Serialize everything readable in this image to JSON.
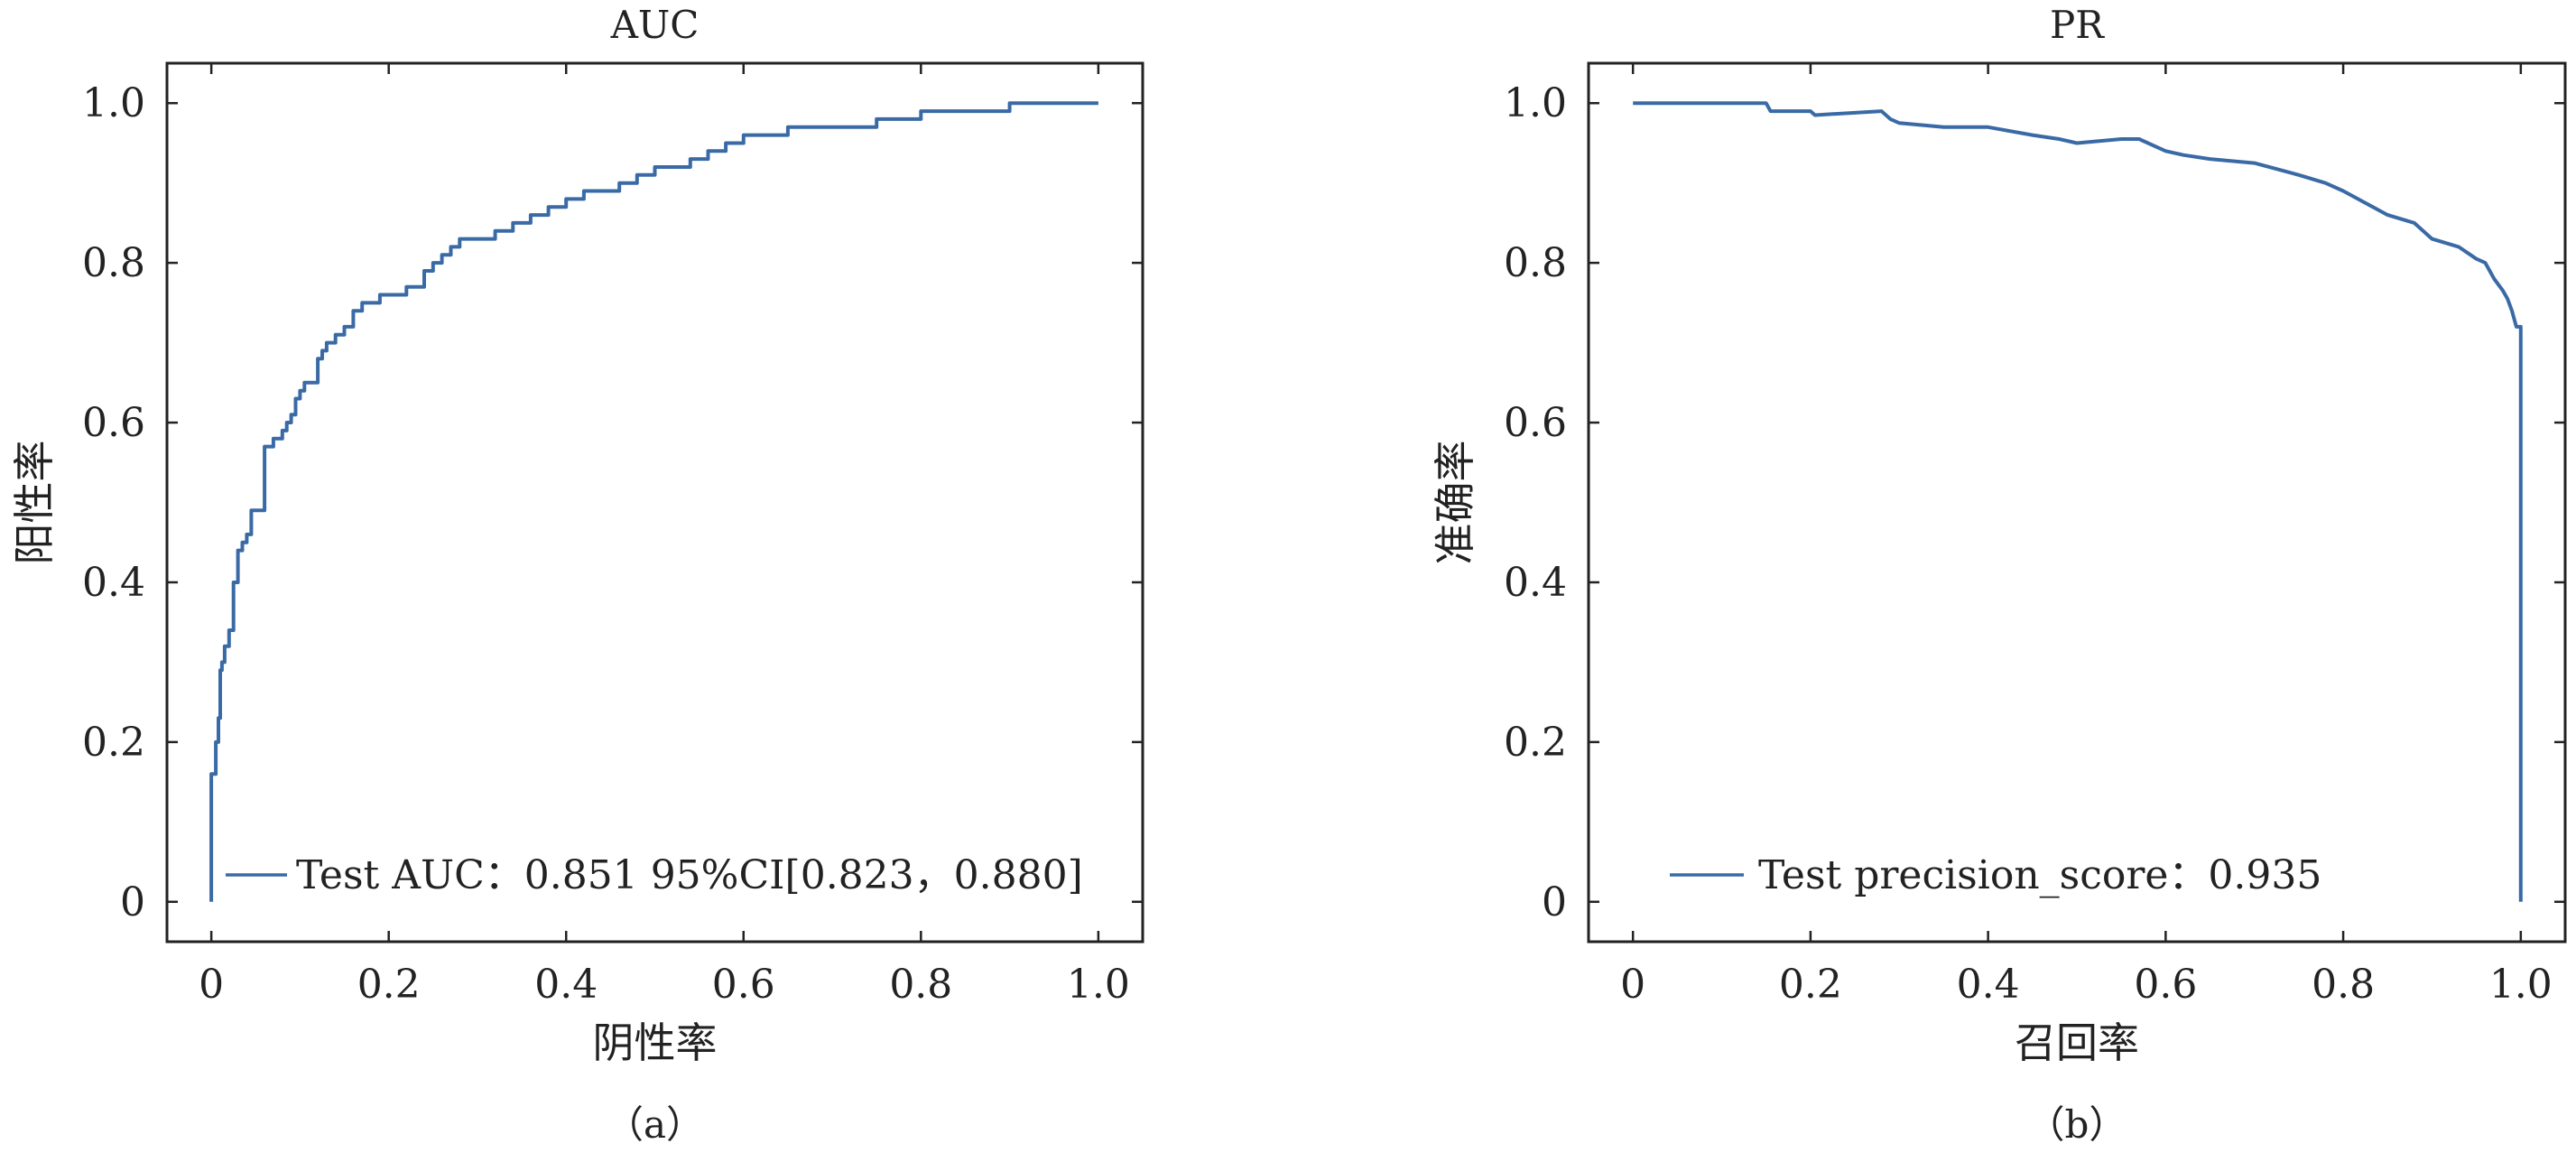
{
  "colors": {
    "curve": "#3a6aa5",
    "axis": "#222222",
    "background": "#ffffff"
  },
  "chart_data": [
    {
      "type": "line",
      "title": "AUC",
      "xlabel": "阴性率",
      "ylabel": "阳性率",
      "caption": "（a）",
      "xlim": [
        -0.05,
        1.05
      ],
      "ylim": [
        -0.05,
        1.05
      ],
      "xticks": [
        0,
        0.2,
        0.4,
        0.6,
        0.8,
        1.0
      ],
      "xtick_labels": [
        "0",
        "0.2",
        "0.4",
        "0.6",
        "0.8",
        "1.0"
      ],
      "yticks": [
        0,
        0.2,
        0.4,
        0.6,
        0.8,
        1.0
      ],
      "ytick_labels": [
        "0",
        "0.2",
        "0.4",
        "0.6",
        "0.8",
        "1.0"
      ],
      "grid": false,
      "legend_position": "bottom-right",
      "series": [
        {
          "name": "Test AUC：0.851 95%CI[0.823，0.880]",
          "step": true,
          "x": [
            0,
            0,
            0.005,
            0.008,
            0.01,
            0.012,
            0.015,
            0.02,
            0.025,
            0.03,
            0.035,
            0.04,
            0.045,
            0.05,
            0.055,
            0.06,
            0.07,
            0.08,
            0.085,
            0.09,
            0.095,
            0.1,
            0.105,
            0.11,
            0.12,
            0.125,
            0.13,
            0.135,
            0.14,
            0.15,
            0.16,
            0.17,
            0.18,
            0.19,
            0.2,
            0.22,
            0.24,
            0.25,
            0.26,
            0.27,
            0.28,
            0.3,
            0.32,
            0.34,
            0.36,
            0.38,
            0.4,
            0.42,
            0.44,
            0.46,
            0.48,
            0.5,
            0.52,
            0.54,
            0.56,
            0.58,
            0.6,
            0.62,
            0.65,
            0.7,
            0.75,
            0.8,
            0.85,
            0.9,
            0.95,
            1.0
          ],
          "y": [
            0,
            0.16,
            0.2,
            0.23,
            0.29,
            0.3,
            0.32,
            0.34,
            0.4,
            0.44,
            0.45,
            0.46,
            0.49,
            0.49,
            0.49,
            0.57,
            0.58,
            0.59,
            0.6,
            0.61,
            0.63,
            0.64,
            0.65,
            0.65,
            0.68,
            0.69,
            0.7,
            0.7,
            0.71,
            0.72,
            0.74,
            0.75,
            0.75,
            0.76,
            0.76,
            0.77,
            0.79,
            0.8,
            0.81,
            0.82,
            0.83,
            0.83,
            0.84,
            0.85,
            0.86,
            0.87,
            0.88,
            0.89,
            0.89,
            0.9,
            0.91,
            0.92,
            0.92,
            0.93,
            0.94,
            0.95,
            0.96,
            0.96,
            0.97,
            0.97,
            0.98,
            0.99,
            0.99,
            1.0,
            1.0,
            1.0
          ]
        }
      ]
    },
    {
      "type": "line",
      "title": "PR",
      "xlabel": "召回率",
      "ylabel": "准确率",
      "caption": "（b）",
      "xlim": [
        -0.05,
        1.05
      ],
      "ylim": [
        -0.05,
        1.05
      ],
      "xticks": [
        0,
        0.2,
        0.4,
        0.6,
        0.8,
        1.0
      ],
      "xtick_labels": [
        "0",
        "0.2",
        "0.4",
        "0.6",
        "0.8",
        "1.0"
      ],
      "yticks": [
        0,
        0.2,
        0.4,
        0.6,
        0.8,
        1.0
      ],
      "ytick_labels": [
        "0",
        "0.2",
        "0.4",
        "0.6",
        "0.8",
        "1.0"
      ],
      "grid": false,
      "legend_position": "bottom-right",
      "series": [
        {
          "name": "Test precision_score：0.935",
          "step": false,
          "x": [
            0,
            0.15,
            0.155,
            0.2,
            0.205,
            0.28,
            0.29,
            0.3,
            0.35,
            0.4,
            0.45,
            0.48,
            0.5,
            0.55,
            0.57,
            0.6,
            0.62,
            0.65,
            0.7,
            0.75,
            0.78,
            0.8,
            0.85,
            0.88,
            0.9,
            0.93,
            0.95,
            0.96,
            0.97,
            0.98,
            0.985,
            0.99,
            0.995,
            1.0,
            1.0
          ],
          "y": [
            1.0,
            1.0,
            0.99,
            0.99,
            0.985,
            0.99,
            0.98,
            0.975,
            0.97,
            0.97,
            0.96,
            0.955,
            0.95,
            0.955,
            0.955,
            0.94,
            0.935,
            0.93,
            0.925,
            0.91,
            0.9,
            0.89,
            0.86,
            0.85,
            0.83,
            0.82,
            0.805,
            0.8,
            0.78,
            0.765,
            0.755,
            0.74,
            0.72,
            0.72,
            0
          ]
        }
      ]
    }
  ]
}
